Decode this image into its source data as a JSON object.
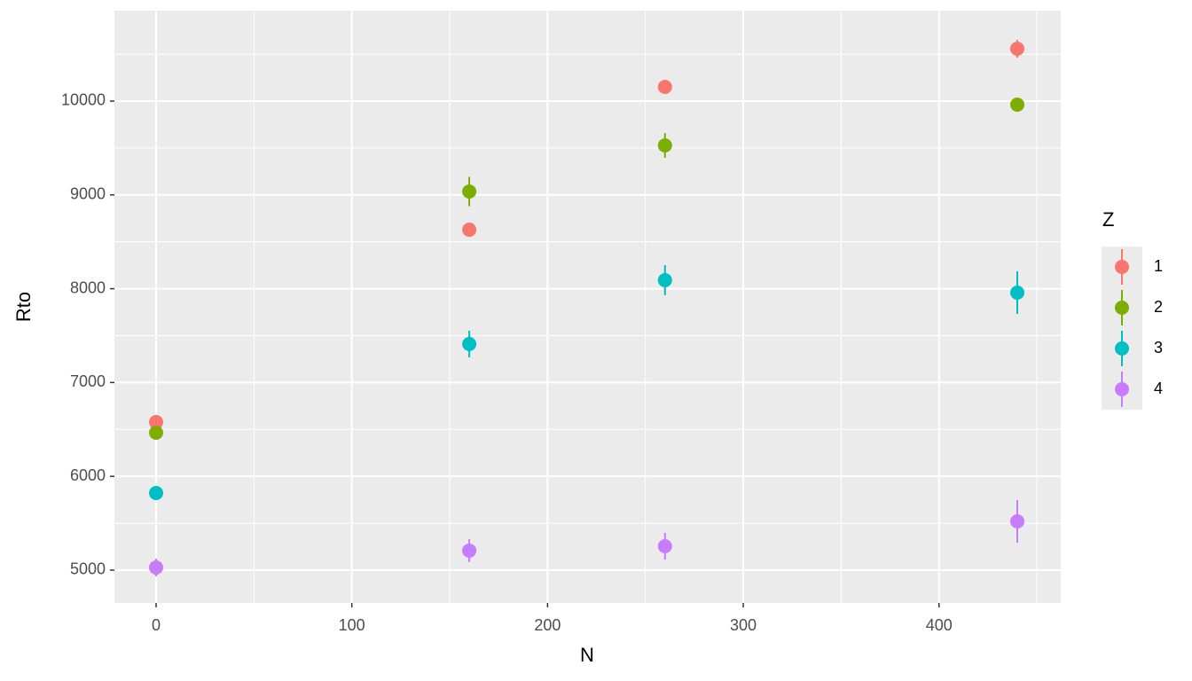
{
  "chart_data": {
    "type": "scatter",
    "x_label": "N",
    "y_label": "Rto",
    "xlim": [
      -21.3,
      462.2
    ],
    "ylim": [
      4650,
      10964
    ],
    "xticks": [
      0,
      100,
      200,
      300,
      400
    ],
    "yticks": [
      5000,
      6000,
      7000,
      8000,
      9000,
      10000
    ],
    "grid": true,
    "legend_title": "Z",
    "legend_position": "right",
    "series": [
      {
        "name": "1",
        "color": "#F8766D",
        "x": [
          0,
          160,
          260,
          440
        ],
        "values": [
          6578,
          8629,
          10151,
          10558
        ],
        "errors": [
          40,
          45,
          40,
          95
        ]
      },
      {
        "name": "2",
        "color": "#7CAE00",
        "x": [
          0,
          160,
          260,
          440
        ],
        "values": [
          6465,
          9036,
          9527,
          9962
        ],
        "errors": [
          45,
          156,
          132,
          50
        ]
      },
      {
        "name": "3",
        "color": "#00BFC4",
        "x": [
          0,
          160,
          260,
          440
        ],
        "values": [
          5822,
          7410,
          8091,
          7958
        ],
        "errors": [
          40,
          142,
          160,
          227
        ]
      },
      {
        "name": "4",
        "color": "#C77CFF",
        "x": [
          0,
          160,
          260,
          440
        ],
        "values": [
          5028,
          5208,
          5255,
          5520
        ],
        "errors": [
          95,
          123,
          142,
          227
        ]
      }
    ]
  }
}
